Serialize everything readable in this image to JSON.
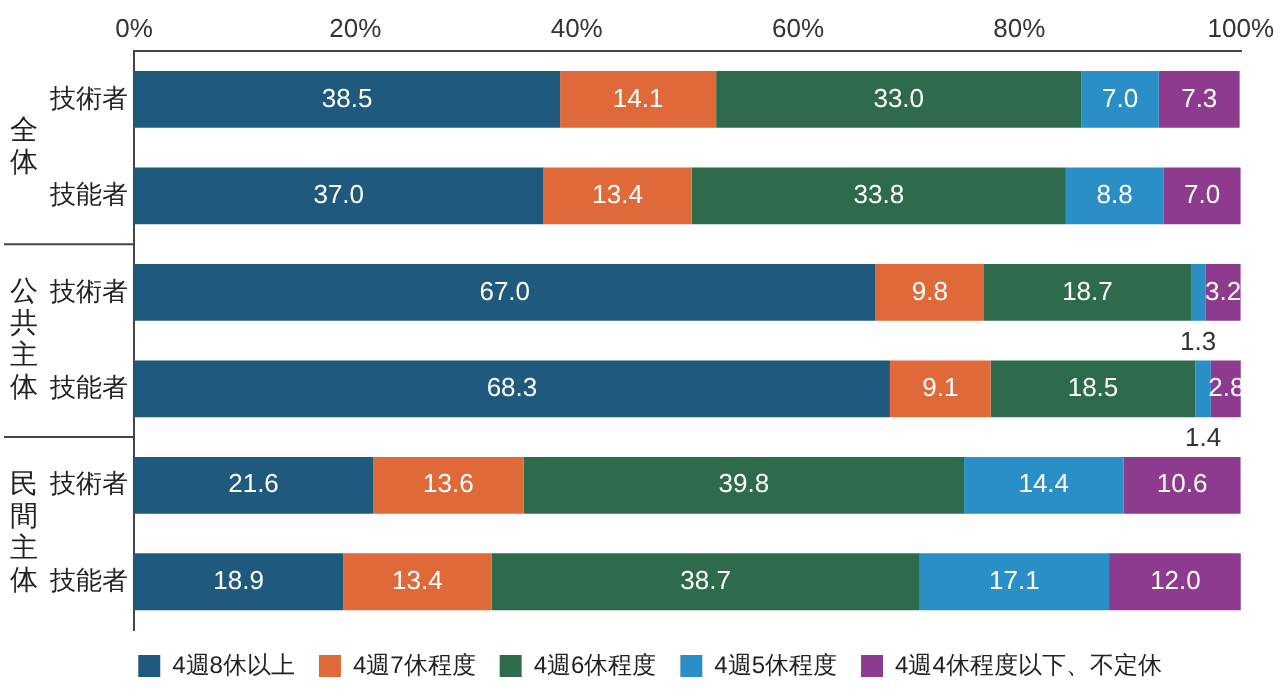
{
  "chart_data": {
    "type": "bar",
    "orientation": "horizontal",
    "stacked": true,
    "legend": "bottom",
    "grid": false,
    "categories": [
      "技術者",
      "技能者",
      "技術者",
      "技能者",
      "技術者",
      "技能者"
    ],
    "annotations": [
      "全体",
      "公共主体",
      "民間主体"
    ],
    "xlim": [
      0,
      100
    ],
    "xticks": [
      {
        "value": 0,
        "label": "0%"
      },
      {
        "value": 20,
        "label": "20%"
      },
      {
        "value": 40,
        "label": "40%"
      },
      {
        "value": 60,
        "label": "60%"
      },
      {
        "value": 80,
        "label": "80%"
      },
      {
        "value": 100,
        "label": "100%"
      }
    ],
    "series": [
      {
        "name": "4週8休以上",
        "color": "#1f5a7e",
        "values": [
          38.5,
          37.0,
          67.0,
          68.3,
          21.6,
          18.9
        ],
        "value_labels": [
          "38.5",
          "37.0",
          "67.0",
          "68.3",
          "21.6",
          "18.9"
        ]
      },
      {
        "name": "4週7休程度",
        "color": "#e0693a",
        "values": [
          14.1,
          13.4,
          9.8,
          9.1,
          13.6,
          13.4
        ],
        "value_labels": [
          "14.1",
          "13.4",
          "9.8",
          "9.1",
          "13.6",
          "13.4"
        ]
      },
      {
        "name": "4週6休程度",
        "color": "#2e6b4b",
        "values": [
          33.0,
          33.8,
          18.7,
          18.5,
          39.8,
          38.7
        ],
        "value_labels": [
          "33.0",
          "33.8",
          "18.7",
          "18.5",
          "39.8",
          "38.7"
        ]
      },
      {
        "name": "4週5休程度",
        "color": "#2a8fc7",
        "values": [
          7.0,
          8.8,
          1.3,
          1.4,
          14.4,
          17.1
        ],
        "value_labels": [
          "7.0",
          "8.8",
          "1.3",
          "1.4",
          "14.4",
          "17.1"
        ]
      },
      {
        "name": "4週4休程度以下、不定休",
        "color": "#8e3a8e",
        "values": [
          7.3,
          7.0,
          3.2,
          2.8,
          10.6,
          12.0
        ],
        "value_labels": [
          "7.3",
          "7.0",
          "3.2",
          "2.8",
          "10.6",
          "12.0"
        ]
      }
    ]
  }
}
